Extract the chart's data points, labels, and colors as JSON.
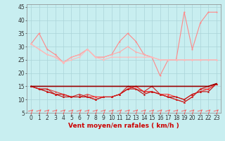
{
  "x": [
    0,
    1,
    2,
    3,
    4,
    5,
    6,
    7,
    8,
    9,
    10,
    11,
    12,
    13,
    14,
    15,
    16,
    17,
    18,
    19,
    20,
    21,
    22,
    23
  ],
  "series": [
    {
      "color": "#ff8888",
      "linewidth": 0.8,
      "marker": "o",
      "markersize": 1.5,
      "values": [
        31,
        35,
        29,
        27,
        24,
        26,
        27,
        29,
        26,
        26,
        27,
        32,
        35,
        32,
        27,
        26,
        19,
        25,
        25,
        43,
        29,
        39,
        43,
        43
      ]
    },
    {
      "color": "#ffaaaa",
      "linewidth": 0.8,
      "marker": "o",
      "markersize": 1.5,
      "values": [
        31,
        29,
        27,
        26,
        24,
        26,
        27,
        29,
        26,
        26,
        27,
        28,
        30,
        28,
        27,
        26,
        25,
        25,
        25,
        25,
        25,
        25,
        25,
        25
      ]
    },
    {
      "color": "#ffbbbb",
      "linewidth": 0.8,
      "marker": "o",
      "markersize": 1.5,
      "values": [
        31,
        29,
        27,
        26,
        24,
        25,
        26,
        29,
        26,
        25,
        26,
        26,
        26,
        26,
        26,
        26,
        25,
        25,
        25,
        25,
        25,
        25,
        25,
        25
      ]
    },
    {
      "color": "#dd4444",
      "linewidth": 0.8,
      "marker": "^",
      "markersize": 2,
      "values": [
        15,
        14,
        14,
        13,
        12,
        11,
        11,
        12,
        11,
        11,
        11,
        12,
        14,
        15,
        13,
        13,
        12,
        11,
        10,
        9,
        11,
        14,
        14,
        16
      ]
    },
    {
      "color": "#ff3333",
      "linewidth": 0.8,
      "marker": "^",
      "markersize": 2,
      "values": [
        15,
        14,
        13,
        12,
        12,
        11,
        11,
        11,
        11,
        11,
        11,
        12,
        14,
        15,
        13,
        13,
        12,
        12,
        11,
        10,
        12,
        13,
        14,
        16
      ]
    },
    {
      "color": "#bb1111",
      "linewidth": 0.8,
      "marker": "^",
      "markersize": 2,
      "values": [
        15,
        14,
        13,
        12,
        11,
        11,
        11,
        11,
        10,
        11,
        11,
        12,
        14,
        14,
        12,
        13,
        12,
        11,
        11,
        10,
        12,
        13,
        13,
        16
      ]
    },
    {
      "color": "#cc2222",
      "linewidth": 0.8,
      "marker": "^",
      "markersize": 2,
      "values": [
        15,
        14,
        14,
        12,
        12,
        11,
        12,
        11,
        10,
        11,
        11,
        12,
        15,
        14,
        13,
        15,
        12,
        11,
        10,
        9,
        11,
        14,
        15,
        16
      ]
    },
    {
      "color": "#990000",
      "linewidth": 1.2,
      "marker": null,
      "markersize": 0,
      "values": [
        15,
        15,
        15,
        15,
        15,
        15,
        15,
        15,
        15,
        15,
        15,
        15,
        15,
        15,
        15,
        15,
        15,
        15,
        15,
        15,
        15,
        15,
        15,
        16
      ]
    }
  ],
  "xlabel": "Vent moyen/en rafales ( km/h )",
  "xlim": [
    -0.5,
    23.5
  ],
  "ylim": [
    5,
    46
  ],
  "yticks": [
    5,
    10,
    15,
    20,
    25,
    30,
    35,
    40,
    45
  ],
  "xticks": [
    0,
    1,
    2,
    3,
    4,
    5,
    6,
    7,
    8,
    9,
    10,
    11,
    12,
    13,
    14,
    15,
    16,
    17,
    18,
    19,
    20,
    21,
    22,
    23
  ],
  "bg_color": "#c8eef0",
  "grid_color": "#aad4d8",
  "xlabel_fontsize": 6.5,
  "tick_fontsize": 5.5,
  "arrow_color": "#ff5555"
}
